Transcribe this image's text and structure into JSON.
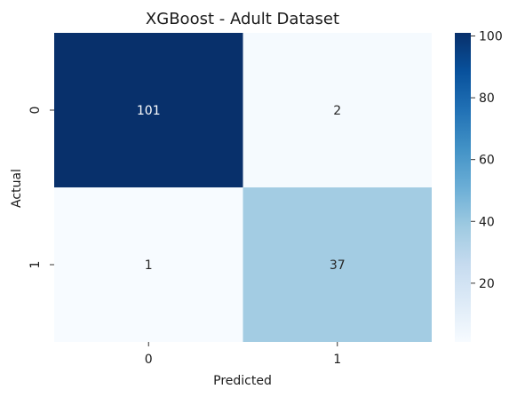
{
  "chart_data": {
    "type": "heatmap",
    "title": "XGBoost - Adult Dataset",
    "xlabel": "Predicted",
    "ylabel": "Actual",
    "x_categories": [
      "0",
      "1"
    ],
    "y_categories": [
      "0",
      "1"
    ],
    "values": [
      [
        101,
        2
      ],
      [
        1,
        37
      ]
    ],
    "colormap": "Blues",
    "colormap_stops": [
      "#f7fbff",
      "#deebf7",
      "#c6dbef",
      "#9ecae1",
      "#6baed6",
      "#4292c6",
      "#2171b5",
      "#08519c",
      "#08306b"
    ],
    "color_range": [
      1,
      101
    ],
    "colorbar_ticks": [
      20,
      40,
      60,
      80,
      100
    ],
    "colorbar_tick_labels": [
      "20",
      "40",
      "60",
      "80",
      "100"
    ],
    "annotations": true
  }
}
